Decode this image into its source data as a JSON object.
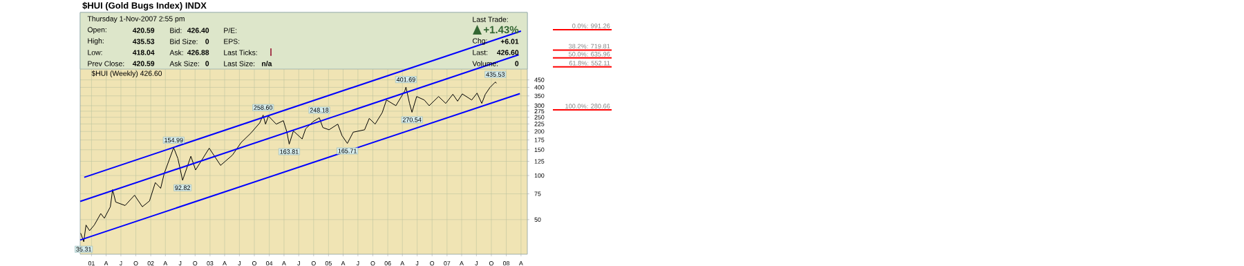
{
  "chart_data": {
    "type": "line",
    "title": "$HUI (Gold Bugs Index) INDX",
    "x": [
      "2000-10-26",
      "2000-11-14",
      "2000-11-28",
      "2000-12-20",
      "2001-01-18",
      "2001-02-27",
      "2001-03-21",
      "2001-04-27",
      "2001-05-11",
      "2001-05-30",
      "2001-07-27",
      "2001-09-23",
      "2001-11-10",
      "2001-12-24",
      "2002-01-29",
      "2002-03-03",
      "2002-03-25",
      "2002-05-22",
      "2002-06-17",
      "2002-07-16",
      "2002-09-05",
      "2002-10-04",
      "2002-12-27",
      "2003-03-07",
      "2003-05-19",
      "2003-07-12",
      "2003-09-09",
      "2003-11-03",
      "2003-11-24",
      "2003-12-09",
      "2003-12-27",
      "2004-02-13",
      "2004-03-28",
      "2004-04-19",
      "2004-05-03",
      "2004-05-29",
      "2004-07-22",
      "2004-08-13",
      "2004-09-26",
      "2004-11-05",
      "2004-11-27",
      "2005-01-04",
      "2005-02-27",
      "2005-03-25",
      "2005-04-27",
      "2005-06-02",
      "2005-08-11",
      "2005-09-09",
      "2005-10-15",
      "2005-11-28",
      "2005-12-24",
      "2006-02-20",
      "2006-04-16",
      "2006-04-23",
      "2006-05-15",
      "2006-05-30",
      "2006-06-28",
      "2006-08-14",
      "2006-09-13",
      "2006-11-10",
      "2006-12-24",
      "2007-02-06",
      "2007-03-07",
      "2007-04-05",
      "2007-06-02",
      "2007-07-05",
      "2007-08-03",
      "2007-08-25",
      "2007-09-23",
      "2007-10-26",
      "2007-11-01"
    ],
    "series": [
      {
        "color": "#000000",
        "values": [
          40.4,
          35.31,
          45.9,
          42.0,
          45.9,
          55.0,
          51.1,
          61.2,
          80.2,
          65.9,
          62.4,
          73.4,
          61.2,
          67.0,
          89.5,
          81.8,
          103.4,
          154.99,
          130.6,
          92.82,
          135.4,
          109.1,
          153.7,
          117.3,
          137.9,
          168.2,
          194.5,
          228.7,
          258.6,
          224.4,
          254.9,
          224.4,
          237.0,
          197.8,
          163.81,
          201.6,
          177.7,
          208.8,
          232.7,
          248.18,
          212.7,
          205.3,
          224.4,
          187.4,
          165.71,
          197.8,
          205.3,
          245.6,
          224.4,
          269.2,
          328,
          299.9,
          378.9,
          401.69,
          310.9,
          270.54,
          346.5,
          328,
          300,
          346.5,
          310.9,
          359,
          322,
          361,
          328,
          365.6,
          310.9,
          359,
          400,
          435.53,
          426.6
        ]
      },
      {
        "type": "line",
        "color": "#0000ff",
        "x": [
          "2000-11-17",
          "2008-04-01"
        ],
        "values": [
          97.3,
          969
        ]
      },
      {
        "type": "line",
        "color": "#0000ff",
        "x": [
          "2000-10-23",
          "2008-03-18"
        ],
        "values": [
          66.6,
          668
        ]
      },
      {
        "type": "line",
        "color": "#0000ff",
        "x": [
          "2000-10-23",
          "2008-03-25"
        ],
        "values": [
          36.3,
          362.8
        ]
      }
    ],
    "xlim": [
      "2000-10-23",
      "2008-05-10"
    ],
    "xticks": [
      {
        "value": "2001-01-01",
        "label": "01"
      },
      {
        "value": "2001-04-01",
        "label": "A"
      },
      {
        "value": "2001-07-01",
        "label": "J"
      },
      {
        "value": "2001-10-01",
        "label": "O"
      },
      {
        "value": "2002-01-01",
        "label": "02"
      },
      {
        "value": "2002-04-01",
        "label": "A"
      },
      {
        "value": "2002-07-01",
        "label": "J"
      },
      {
        "value": "2002-10-01",
        "label": "O"
      },
      {
        "value": "2003-01-01",
        "label": "03"
      },
      {
        "value": "2003-04-01",
        "label": "A"
      },
      {
        "value": "2003-07-01",
        "label": "J"
      },
      {
        "value": "2003-10-01",
        "label": "O"
      },
      {
        "value": "2004-01-01",
        "label": "04"
      },
      {
        "value": "2004-04-01",
        "label": "A"
      },
      {
        "value": "2004-07-01",
        "label": "J"
      },
      {
        "value": "2004-10-01",
        "label": "O"
      },
      {
        "value": "2005-01-01",
        "label": "05"
      },
      {
        "value": "2005-04-01",
        "label": "A"
      },
      {
        "value": "2005-07-01",
        "label": "J"
      },
      {
        "value": "2005-10-01",
        "label": "O"
      },
      {
        "value": "2006-01-01",
        "label": "06"
      },
      {
        "value": "2006-04-01",
        "label": "A"
      },
      {
        "value": "2006-07-01",
        "label": "J"
      },
      {
        "value": "2006-10-01",
        "label": "O"
      },
      {
        "value": "2007-01-01",
        "label": "07"
      },
      {
        "value": "2007-04-01",
        "label": "A"
      },
      {
        "value": "2007-07-01",
        "label": "J"
      },
      {
        "value": "2007-10-01",
        "label": "O"
      },
      {
        "value": "2008-01-01",
        "label": "08"
      },
      {
        "value": "2008-04-01",
        "label": "A"
      }
    ],
    "ylim": [
      29,
      1300
    ],
    "yticks": [
      50,
      75,
      100,
      125,
      150,
      175,
      200,
      225,
      250,
      275,
      300,
      350,
      400,
      450
    ],
    "log": "y",
    "grid": true,
    "ref_lines": [
      {
        "axis": "y",
        "value": 991.26,
        "label": "0.0%: 991.26",
        "color": "#ff0000"
      },
      {
        "axis": "y",
        "value": 719.81,
        "label": "38.2%: 719.81",
        "color": "#ff0000"
      },
      {
        "axis": "y",
        "value": 635.96,
        "label": "50.0%: 635.96",
        "color": "#ff0000"
      },
      {
        "axis": "y",
        "value": 552.11,
        "label": "61.8%: 552.11",
        "color": "#ff0000"
      },
      {
        "axis": "y",
        "value": 280.66,
        "label": "100.0%: 280.66",
        "color": "#ff0000"
      }
    ],
    "annotations": [
      "Thursday  1-Nov-2007  2:55 pm",
      "Open:",
      "420.59",
      "Bid:",
      "426.40",
      "P/E:",
      "High:",
      "435.53",
      "Bid Size:",
      "0",
      "EPS:",
      "Low:",
      "418.04",
      "Ask:",
      "426.88",
      "Last Ticks:",
      "Prev Close:",
      "420.59",
      "Ask Size:",
      "0",
      "Last Size:",
      "n/a",
      "Last Trade:",
      "+1.43%",
      "Chg:",
      "+6.01",
      "Last:",
      "426.60",
      "Volume:",
      "0",
      "$HUI (Weekly) 426.60",
      {
        "text": "35.31",
        "x": "2000-11-14",
        "y": 35.31
      },
      {
        "text": "154.99",
        "x": "2002-05-22",
        "y": 154.99
      },
      {
        "text": "92.82",
        "x": "2002-07-16",
        "y": 92.82
      },
      {
        "text": "258.60",
        "x": "2003-11-24",
        "y": 258.6
      },
      {
        "text": "163.81",
        "x": "2004-05-03",
        "y": 163.81
      },
      {
        "text": "248.18",
        "x": "2004-11-05",
        "y": 248.18
      },
      {
        "text": "165.71",
        "x": "2005-04-27",
        "y": 165.71
      },
      {
        "text": "401.69",
        "x": "2006-04-23",
        "y": 401.69
      },
      {
        "text": "270.54",
        "x": "2006-05-30",
        "y": 270.54
      },
      {
        "text": "435.53",
        "x": "2007-10-26",
        "y": 435.53
      }
    ]
  }
}
